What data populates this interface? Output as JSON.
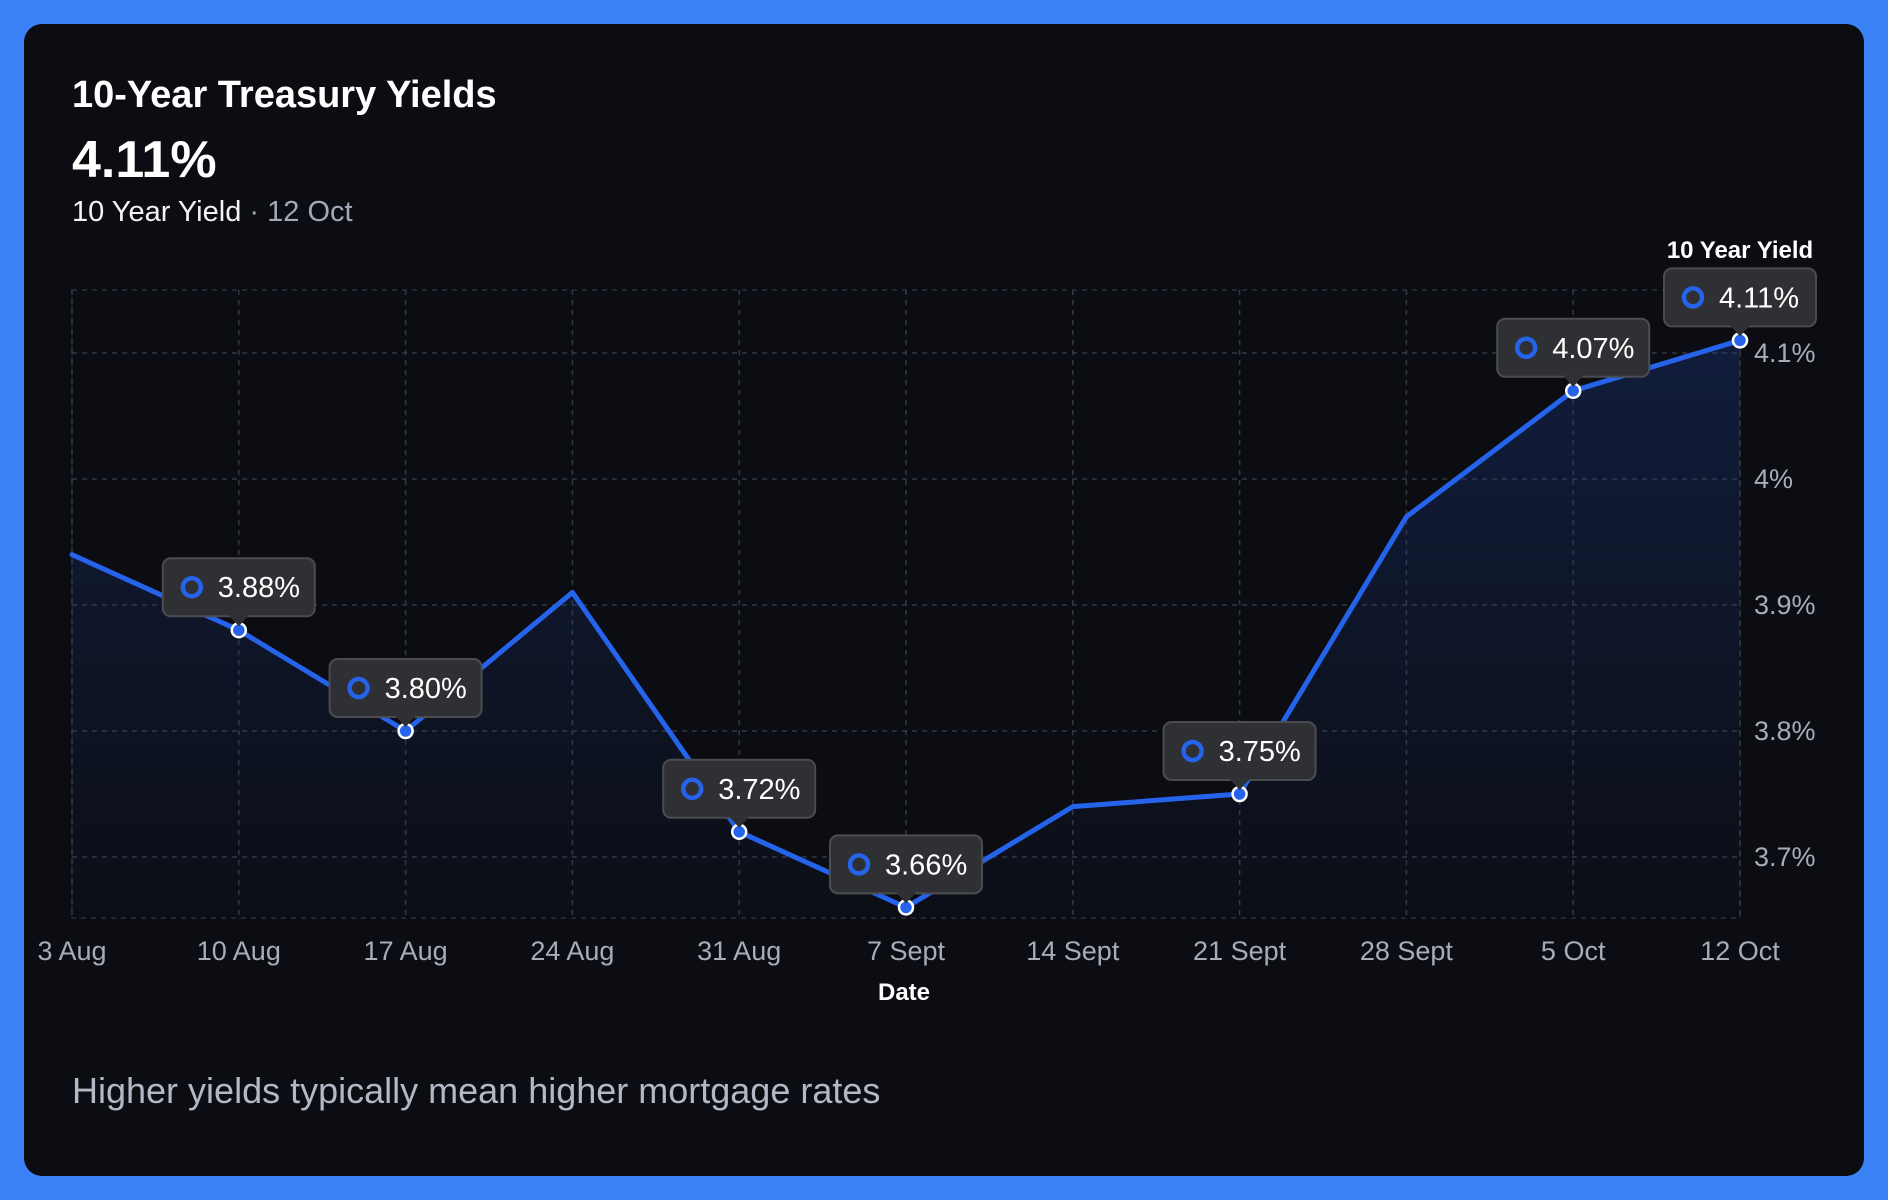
{
  "header": {
    "title": "10-Year Treasury Yields",
    "current_value": "4.11%",
    "subtitle_series": "10 Year Yield",
    "subtitle_separator": "·",
    "subtitle_date": "12 Oct"
  },
  "footer": {
    "note": "Higher yields typically mean higher mortgage rates"
  },
  "colors": {
    "frame": "#3b82f6",
    "background": "#0b0d12",
    "line": "#2563eb",
    "label_bg": "#2f3033"
  },
  "chart_data": {
    "type": "line",
    "title": "",
    "xlabel": "Date",
    "ylabel": "",
    "x": [
      "3 Aug",
      "10 Aug",
      "17 Aug",
      "24 Aug",
      "31 Aug",
      "7 Sept",
      "14 Sept",
      "21 Sept",
      "28 Sept",
      "5 Oct",
      "12 Oct"
    ],
    "series": [
      {
        "name": "10 Year Yield",
        "values": [
          3.94,
          3.88,
          3.8,
          3.91,
          3.72,
          3.66,
          3.74,
          3.75,
          3.97,
          4.07,
          4.11
        ]
      }
    ],
    "data_labels": [
      {
        "index": 1,
        "text": "3.88%"
      },
      {
        "index": 2,
        "text": "3.80%"
      },
      {
        "index": 4,
        "text": "3.72%"
      },
      {
        "index": 5,
        "text": "3.66%"
      },
      {
        "index": 7,
        "text": "3.75%"
      },
      {
        "index": 9,
        "text": "4.07%"
      },
      {
        "index": 10,
        "text": "4.11%"
      }
    ],
    "yticks": [
      3.7,
      3.8,
      3.9,
      4.0,
      4.1
    ],
    "ytick_labels": [
      "3.7%",
      "3.8%",
      "3.9%",
      "4%",
      "4.1%"
    ],
    "ylim": [
      3.65,
      4.15
    ],
    "y_axis_side": "right",
    "grid": true,
    "legend_position": "top-right"
  }
}
